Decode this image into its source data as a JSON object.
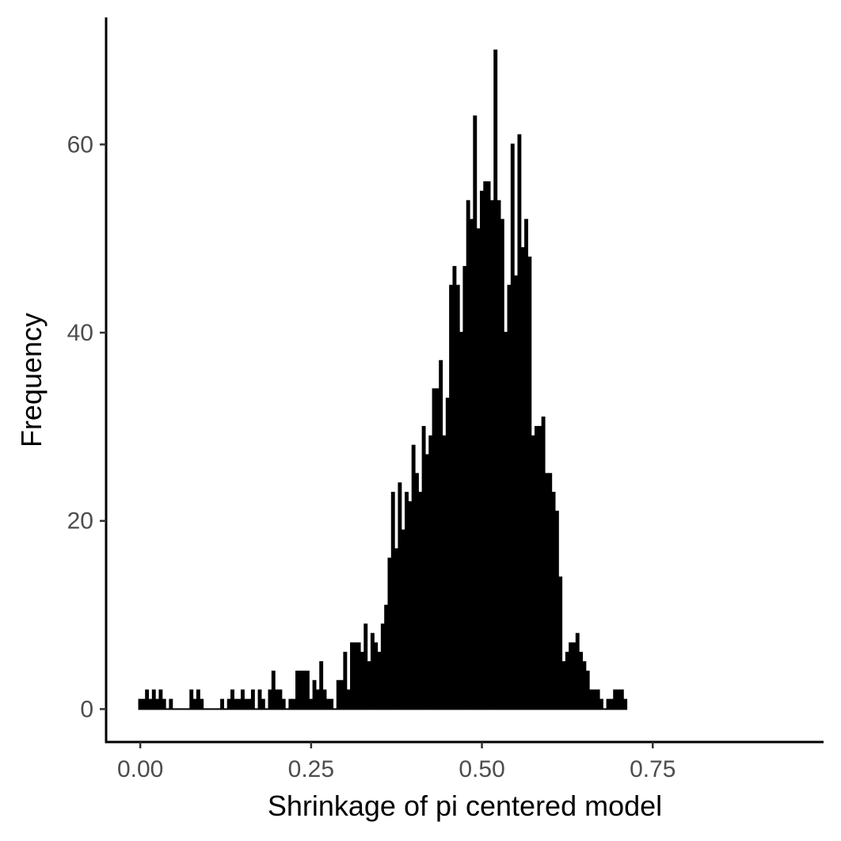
{
  "chart_data": {
    "type": "bar",
    "xlabel": "Shrinkage of pi centered model",
    "ylabel": "Frequency",
    "xlim": [
      -0.05,
      1.0
    ],
    "ylim": [
      -3.5,
      73.5
    ],
    "grid": false,
    "legend": "none",
    "x_ticks": [
      {
        "value": 0.0,
        "label": "0.00"
      },
      {
        "value": 0.25,
        "label": "0.25"
      },
      {
        "value": 0.5,
        "label": "0.50"
      },
      {
        "value": 0.75,
        "label": "0.75"
      }
    ],
    "y_ticks": [
      {
        "value": 0,
        "label": "0"
      },
      {
        "value": 20,
        "label": "20"
      },
      {
        "value": 40,
        "label": "40"
      },
      {
        "value": 60,
        "label": "60"
      }
    ],
    "bin_start": -0.003,
    "bin_width": 0.005,
    "values": [
      1,
      1,
      2,
      1,
      2,
      1,
      2,
      1,
      0,
      1,
      0,
      0,
      0,
      0,
      0,
      2,
      1,
      2,
      1,
      0,
      0,
      0,
      0,
      0,
      1,
      0,
      1,
      2,
      1,
      1,
      2,
      1,
      1,
      2,
      0,
      2,
      1,
      0,
      2,
      4,
      2,
      2,
      1,
      0,
      1,
      1,
      4,
      4,
      4,
      4,
      1,
      3,
      2,
      5,
      2,
      1,
      1,
      0,
      3,
      3,
      6,
      2,
      7,
      7,
      7,
      6,
      9,
      5,
      8,
      7,
      6,
      9,
      11,
      16,
      23,
      17,
      24,
      19,
      23,
      22,
      28,
      25,
      23,
      30,
      27,
      29,
      34,
      34,
      37,
      29,
      33,
      45,
      47,
      45,
      40,
      47,
      54,
      52,
      63,
      51,
      55,
      56,
      56,
      54,
      70,
      54,
      52,
      40,
      45,
      60,
      46,
      61,
      49,
      52,
      48,
      29,
      30,
      30,
      31,
      25,
      25,
      23,
      21,
      14,
      5,
      6,
      7,
      7,
      8,
      6,
      5,
      4,
      2,
      2,
      2,
      1,
      0,
      1,
      1,
      2,
      2,
      2,
      1
    ]
  }
}
